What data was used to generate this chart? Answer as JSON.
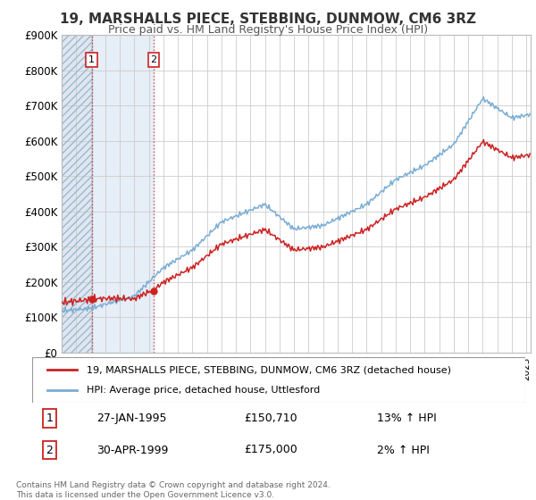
{
  "title": "19, MARSHALLS PIECE, STEBBING, DUNMOW, CM6 3RZ",
  "subtitle": "Price paid vs. HM Land Registry's House Price Index (HPI)",
  "legend_line1": "19, MARSHALLS PIECE, STEBBING, DUNMOW, CM6 3RZ (detached house)",
  "legend_line2": "HPI: Average price, detached house, Uttlesford",
  "transaction1_label": "1",
  "transaction1_date": "27-JAN-1995",
  "transaction1_price": "£150,710",
  "transaction1_hpi": "13% ↑ HPI",
  "transaction2_label": "2",
  "transaction2_date": "30-APR-1999",
  "transaction2_price": "£175,000",
  "transaction2_hpi": "2% ↑ HPI",
  "footnote": "Contains HM Land Registry data © Crown copyright and database right 2024.\nThis data is licensed under the Open Government Licence v3.0.",
  "hpi_color": "#7aadd4",
  "price_color": "#cc2222",
  "marker_color": "#cc2222",
  "shaded_hatch_color": "#c8d8e8",
  "shaded_light_color": "#dce8f0",
  "ylim": [
    0,
    900000
  ],
  "yticks": [
    0,
    100000,
    200000,
    300000,
    400000,
    500000,
    600000,
    700000,
    800000,
    900000
  ],
  "transaction1_x": 1995.07,
  "transaction2_x": 1999.33,
  "transaction1_y": 150710,
  "transaction2_y": 175000,
  "xmin": 1993.0,
  "xmax": 2025.3
}
